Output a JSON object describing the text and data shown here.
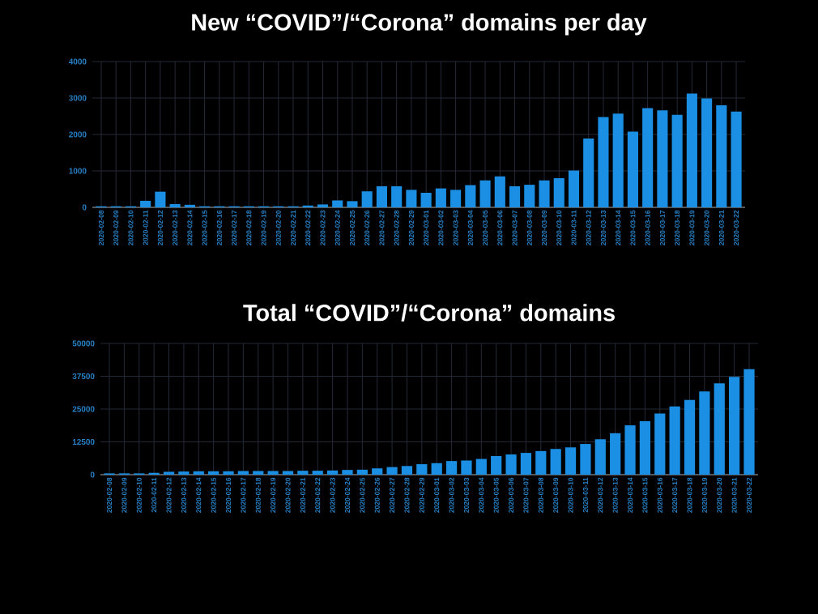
{
  "chart_data": [
    {
      "type": "bar",
      "title": "New “COVID”/“Corona” domains per day",
      "categories": [
        "2020-02-08",
        "2020-02-09",
        "2020-02-10",
        "2020-02-11",
        "2020-02-12",
        "2020-02-13",
        "2020-02-14",
        "2020-02-15",
        "2020-02-16",
        "2020-02-17",
        "2020-02-18",
        "2020-02-19",
        "2020-02-20",
        "2020-02-21",
        "2020-02-22",
        "2020-02-23",
        "2020-02-24",
        "2020-02-25",
        "2020-02-26",
        "2020-02-27",
        "2020-02-28",
        "2020-02-29",
        "2020-03-01",
        "2020-03-02",
        "2020-03-03",
        "2020-03-04",
        "2020-03-05",
        "2020-03-06",
        "2020-03-07",
        "2020-03-08",
        "2020-03-09",
        "2020-03-10",
        "2020-03-11",
        "2020-03-12",
        "2020-03-13",
        "2020-03-14",
        "2020-03-15",
        "2020-03-16",
        "2020-03-17",
        "2020-03-18",
        "2020-03-19",
        "2020-03-20",
        "2020-03-21",
        "2020-03-22"
      ],
      "values": [
        30,
        30,
        30,
        180,
        430,
        90,
        70,
        30,
        30,
        30,
        30,
        30,
        30,
        30,
        50,
        80,
        190,
        170,
        440,
        580,
        580,
        480,
        400,
        520,
        480,
        610,
        740,
        850,
        580,
        620,
        740,
        800,
        1010,
        1890,
        2480,
        2570,
        2080,
        2720,
        2660,
        2540,
        3120,
        2990,
        2800,
        2630
      ],
      "color": "#1a8fe3",
      "ylim": [
        0,
        4000
      ],
      "yticks": [
        0,
        1000,
        2000,
        3000,
        4000
      ],
      "grid": true
    },
    {
      "type": "bar",
      "title": "Total “COVID”/“Corona” domains",
      "categories": [
        "2020-02-08",
        "2020-02-09",
        "2020-02-10",
        "2020-02-11",
        "2020-02-12",
        "2020-02-13",
        "2020-02-14",
        "2020-02-15",
        "2020-02-16",
        "2020-02-17",
        "2020-02-18",
        "2020-02-19",
        "2020-02-20",
        "2020-02-21",
        "2020-02-22",
        "2020-02-23",
        "2020-02-24",
        "2020-02-25",
        "2020-02-26",
        "2020-02-27",
        "2020-02-28",
        "2020-02-29",
        "2020-03-01",
        "2020-03-02",
        "2020-03-03",
        "2020-03-04",
        "2020-03-05",
        "2020-03-06",
        "2020-03-07",
        "2020-03-08",
        "2020-03-09",
        "2020-03-10",
        "2020-03-11",
        "2020-03-12",
        "2020-03-13",
        "2020-03-14",
        "2020-03-15",
        "2020-03-16",
        "2020-03-17",
        "2020-03-18",
        "2020-03-19",
        "2020-03-20",
        "2020-03-21",
        "2020-03-22"
      ],
      "values": [
        500,
        500,
        500,
        700,
        1100,
        1200,
        1300,
        1300,
        1300,
        1400,
        1400,
        1400,
        1400,
        1500,
        1500,
        1600,
        1800,
        1900,
        2400,
        2900,
        3300,
        4000,
        4400,
        5200,
        5400,
        6000,
        7100,
        7700,
        8300,
        9000,
        9800,
        10400,
        11700,
        13500,
        15800,
        18800,
        20400,
        23300,
        26000,
        28500,
        31700,
        34800,
        37300,
        40200
      ],
      "color": "#1a8fe3",
      "ylim": [
        0,
        50000
      ],
      "yticks": [
        0,
        12500,
        25000,
        37500,
        50000
      ],
      "grid": true
    }
  ]
}
